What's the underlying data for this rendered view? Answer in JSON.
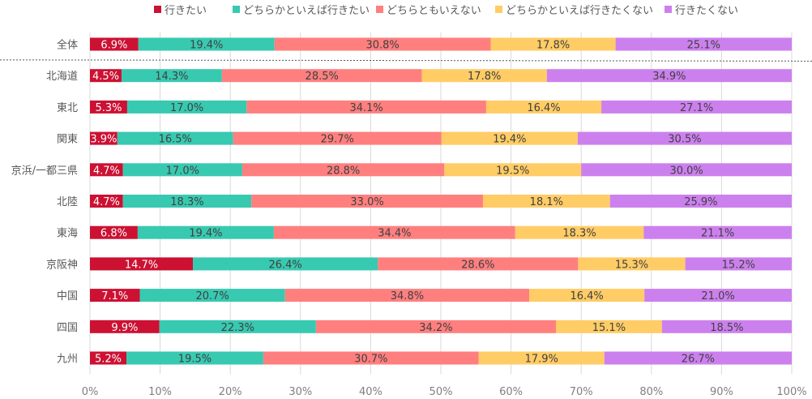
{
  "chart_data": {
    "type": "bar",
    "orientation": "horizontal",
    "stacked": "percent",
    "title": "",
    "xlabel": "",
    "ylabel": "",
    "xlim": [
      0,
      100
    ],
    "x_ticks": [
      "0%",
      "10%",
      "20%",
      "30%",
      "40%",
      "50%",
      "60%",
      "70%",
      "80%",
      "90%",
      "100%"
    ],
    "grid": "vertical",
    "legend_position": "top",
    "separator_after_first_category": true,
    "categories": [
      "全体",
      "北海道",
      "東北",
      "関東",
      "京浜/一都三県",
      "北陸",
      "東海",
      "京阪神",
      "中国",
      "四国",
      "九州"
    ],
    "series": [
      {
        "name": "行きたい",
        "color": "#cc1133",
        "label_color": "#ffffff",
        "values": [
          6.9,
          4.5,
          5.3,
          3.9,
          4.7,
          4.7,
          6.8,
          14.7,
          7.1,
          9.9,
          5.2
        ]
      },
      {
        "name": "どちらかといえば行きたい",
        "color": "#38c9b1",
        "label_color": "#404040",
        "values": [
          19.4,
          14.3,
          17.0,
          16.5,
          17.0,
          18.3,
          19.4,
          26.4,
          20.7,
          22.3,
          19.5
        ]
      },
      {
        "name": "どちらともいえない",
        "color": "#ff7f7f",
        "label_color": "#404040",
        "values": [
          30.8,
          28.5,
          34.1,
          29.7,
          28.8,
          33.0,
          34.4,
          28.6,
          34.8,
          34.2,
          30.7
        ]
      },
      {
        "name": "どちらかといえば行きたくない",
        "color": "#ffcc66",
        "label_color": "#404040",
        "values": [
          17.8,
          17.8,
          16.4,
          19.4,
          19.5,
          18.1,
          18.3,
          15.3,
          16.4,
          15.1,
          17.9
        ]
      },
      {
        "name": "行きたくない",
        "color": "#cc80ee",
        "label_color": "#404040",
        "values": [
          25.1,
          34.9,
          27.1,
          30.5,
          30.0,
          25.9,
          21.1,
          15.2,
          21.0,
          18.5,
          26.7
        ]
      }
    ]
  }
}
